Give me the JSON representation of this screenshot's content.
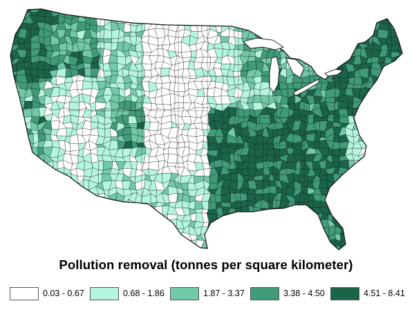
{
  "map": {
    "title": "Pollution removal (tonnes per square kilometer)",
    "region": "Contiguous United States (county level)",
    "legend": [
      {
        "label": "0.03 - 0.67",
        "color": "#ffffff"
      },
      {
        "label": "0.68 - 1.86",
        "color": "#b4f5de"
      },
      {
        "label": "1.87 - 3.37",
        "color": "#72c9a8"
      },
      {
        "label": "3.38 - 4.50",
        "color": "#3f9b78"
      },
      {
        "label": "4.51 - 8.41",
        "color": "#1a6448"
      }
    ],
    "border_color": "#111111"
  }
}
